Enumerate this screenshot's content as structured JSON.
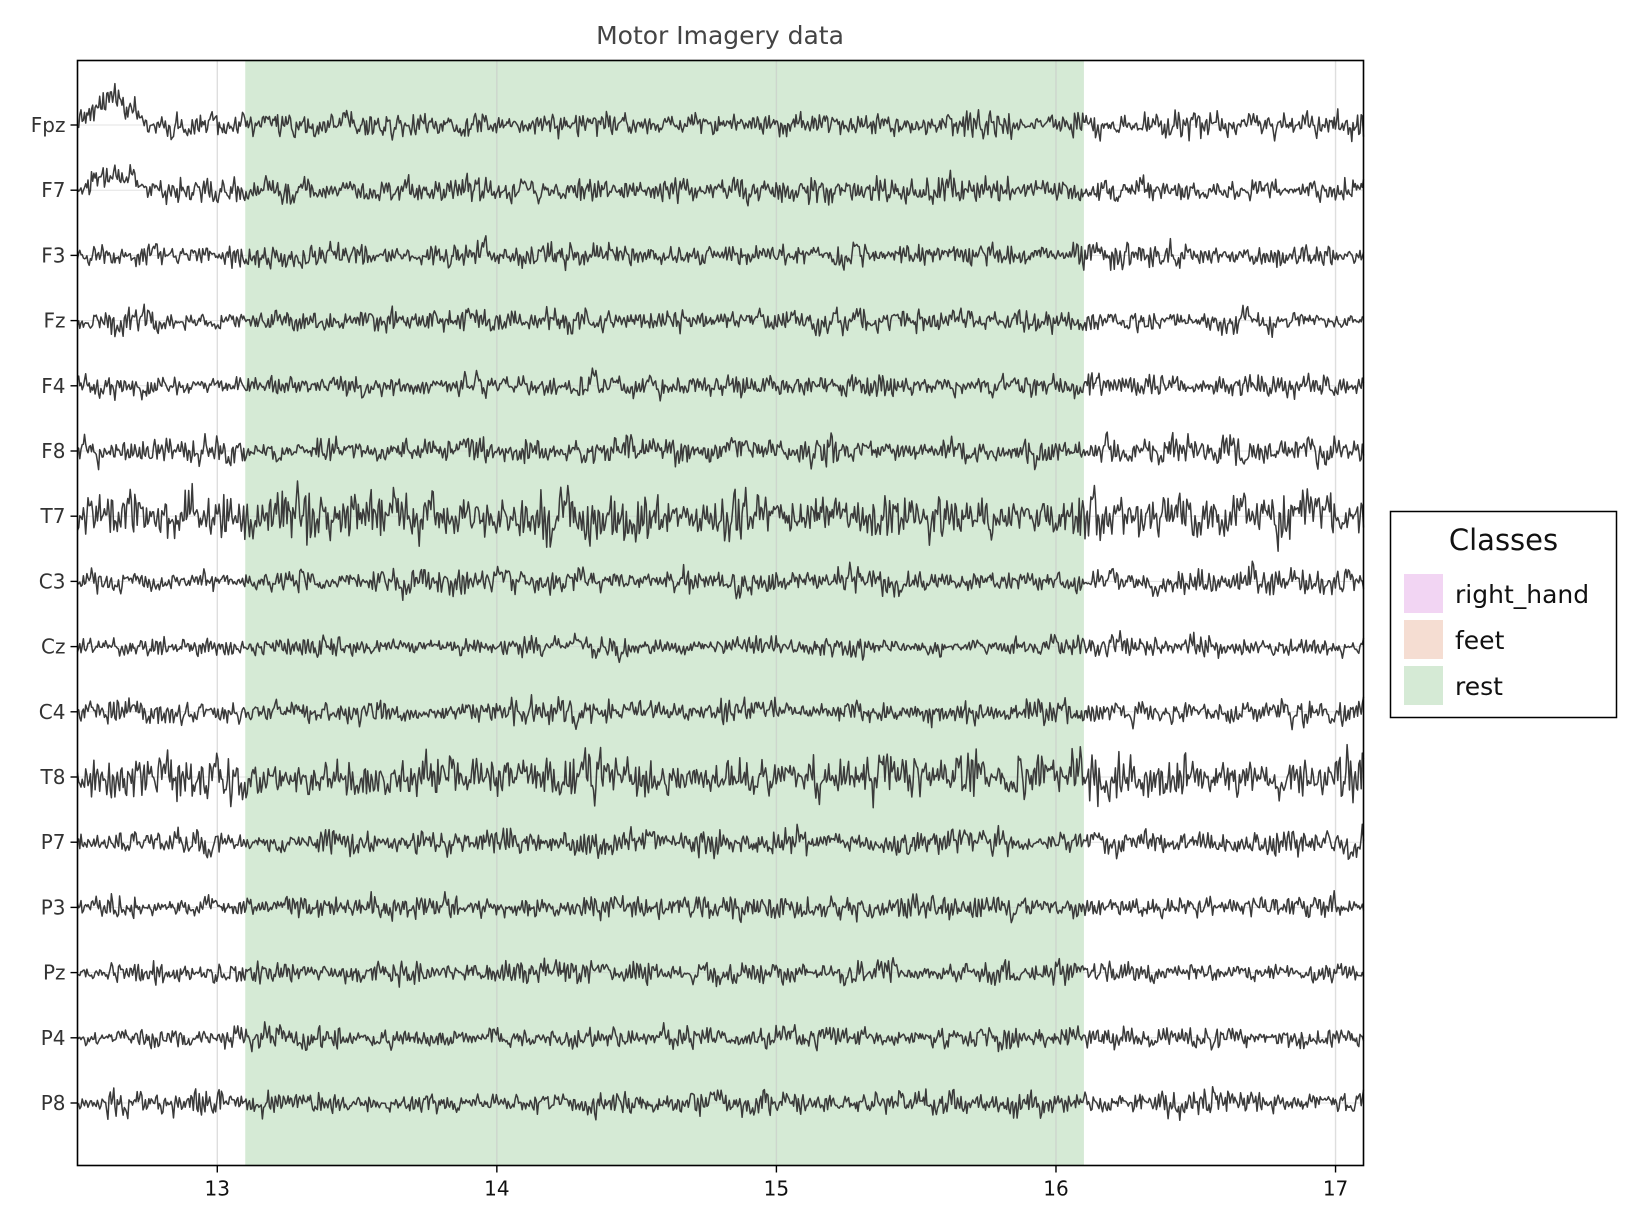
{
  "chart_data": {
    "type": "line",
    "title": "Motor Imagery data",
    "xlabel": "",
    "ylabel": "",
    "xlim": [
      12.5,
      17.1
    ],
    "x_ticks": [
      13,
      14,
      15,
      16,
      17
    ],
    "grid": true,
    "channels": [
      "Fpz",
      "F7",
      "F3",
      "Fz",
      "F4",
      "F8",
      "T7",
      "C3",
      "Cz",
      "C4",
      "T8",
      "P7",
      "P3",
      "Pz",
      "P4",
      "P8"
    ],
    "channel_relative_amplitude": [
      1.0,
      1.0,
      0.9,
      0.9,
      0.9,
      1.05,
      1.9,
      1.0,
      0.85,
      0.95,
      1.8,
      1.0,
      0.9,
      0.85,
      0.85,
      0.95
    ],
    "annotations": [
      {
        "class": "rest",
        "start": 13.1,
        "end": 16.1
      }
    ],
    "legend": {
      "title": "Classes",
      "position": "right",
      "items": [
        {
          "label": "right_hand",
          "color": "#f2d5f3"
        },
        {
          "label": "feet",
          "color": "#f5ddd2"
        },
        {
          "label": "rest",
          "color": "#d5ead5"
        }
      ]
    },
    "trace_color": "#3a3a3a"
  }
}
